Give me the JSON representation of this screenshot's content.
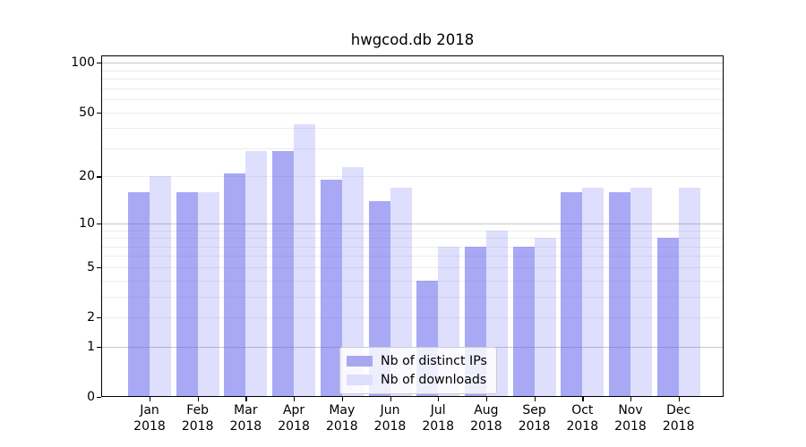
{
  "window": {
    "background": "#ffffff"
  },
  "chart_data": {
    "type": "bar",
    "title": "hwgcod.db 2018",
    "categories": [
      "Jan 2018",
      "Feb 2018",
      "Mar 2018",
      "Apr 2018",
      "May 2018",
      "Jun 2018",
      "Jul 2018",
      "Aug 2018",
      "Sep 2018",
      "Oct 2018",
      "Nov 2018",
      "Dec 2018"
    ],
    "series": [
      {
        "name": "Nb of distinct IPs",
        "values": [
          16,
          16,
          21,
          29,
          19,
          14,
          4,
          7,
          7,
          16,
          16,
          8
        ],
        "fill_rgba": "rgba(100,100,237,0.56)",
        "legend_color": "#a8a8f0"
      },
      {
        "name": "Nb of downloads",
        "values": [
          20,
          16,
          29,
          42,
          23,
          17,
          7,
          9,
          8,
          17,
          17,
          17
        ],
        "fill_rgba": "rgba(105,105,245,0.22)",
        "legend_color": "#dedefd"
      }
    ],
    "xlabel": "",
    "ylabel": "",
    "yscale": "log10(1+value)",
    "ylim": [
      0,
      112
    ],
    "yticks": [
      0,
      1,
      2,
      5,
      10,
      20,
      50,
      100
    ],
    "gridlines": {
      "major": [
        1,
        10,
        100
      ],
      "minor": [
        2,
        3,
        4,
        5,
        6,
        7,
        8,
        9,
        20,
        30,
        40,
        50,
        60,
        70,
        80,
        90
      ],
      "major_color": "#c6c6c6",
      "minor_color": "#ededed"
    },
    "legend_position": "lower center"
  }
}
